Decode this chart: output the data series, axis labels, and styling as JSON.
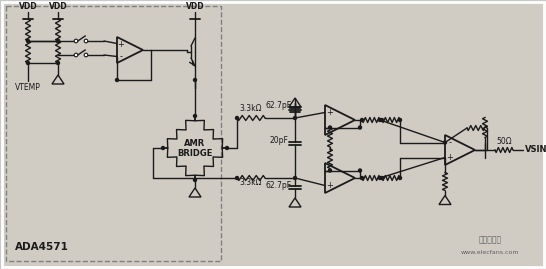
{
  "bg_color": "#c8c8c8",
  "inner_bg": "#d8d8d8",
  "line_color": "#1a1a1a",
  "figsize": [
    5.46,
    2.69
  ],
  "dpi": 100,
  "title": "ADA4571",
  "watermark1": "电子发烧友",
  "watermark2": "www.elecfans.com",
  "label_VDD": "VDD",
  "label_VTEMP": "VTEMP",
  "label_AMR1": "AMR",
  "label_AMR2": "BRIDGE",
  "label_r1": "3.3kΩ",
  "label_r2": "3.3kΩ",
  "label_c1": "62.7pF",
  "label_c2": "62.7pF",
  "label_c3": "20pF",
  "label_r_out": "50Ω",
  "label_VSIN": "VSIN"
}
